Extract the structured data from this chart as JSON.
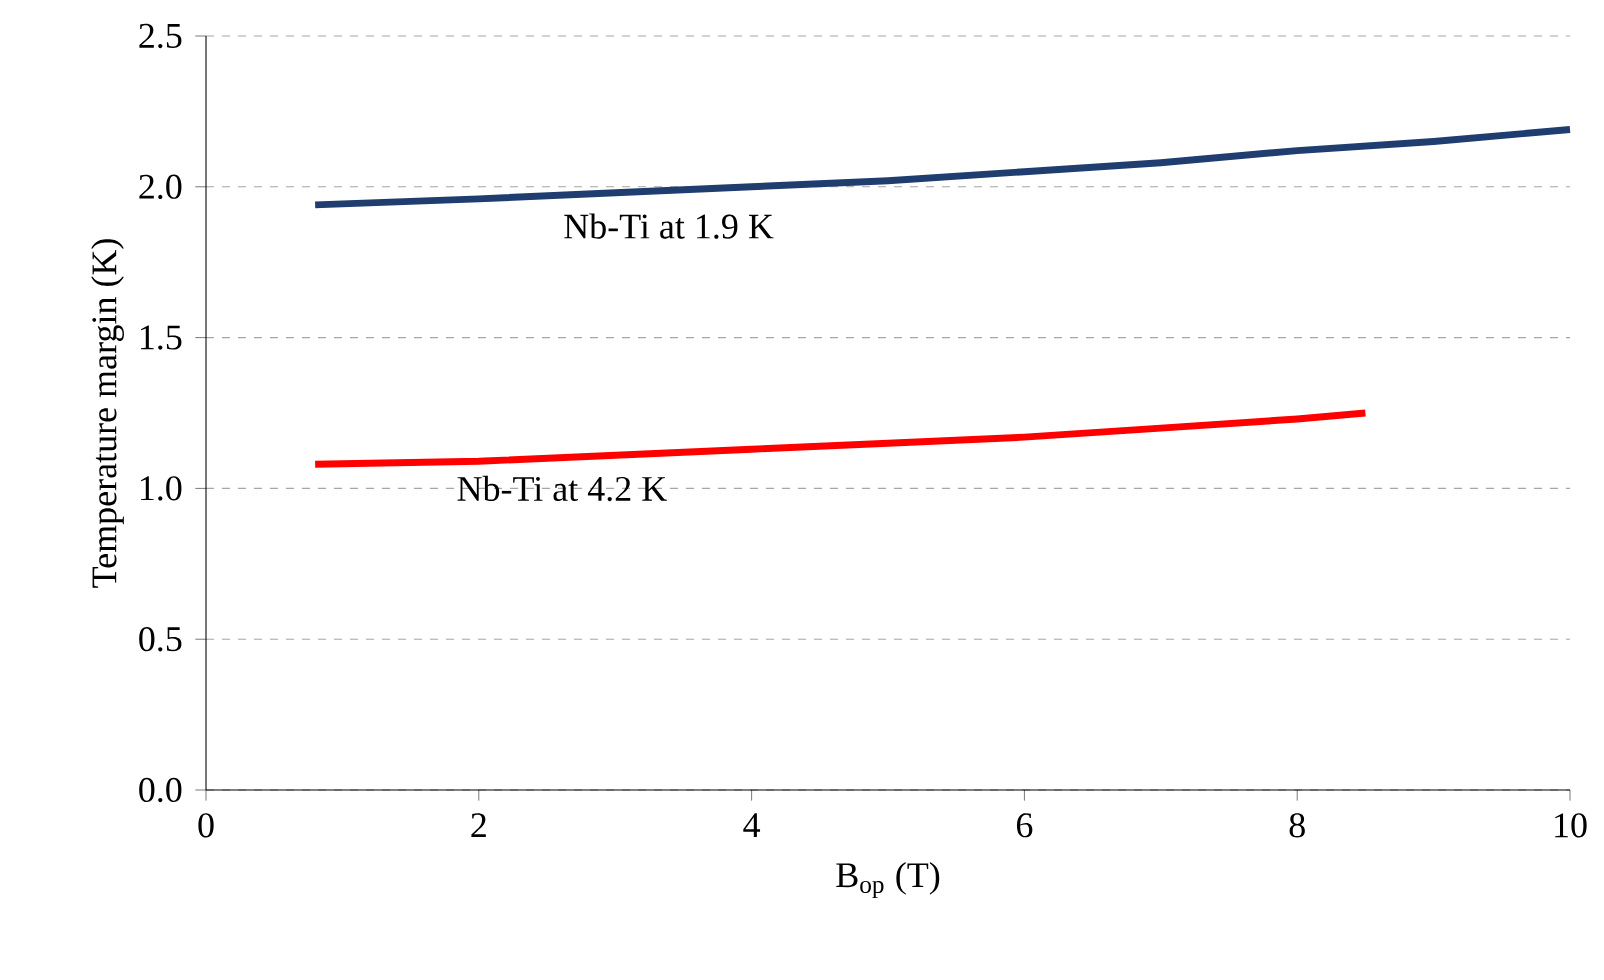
{
  "chart_data": {
    "type": "line",
    "xlabel": "B$_{op}$ (T)",
    "ylabel": "Temperature margin (K)",
    "xlim": [
      0,
      10
    ],
    "ylim": [
      0,
      2.5
    ],
    "xticks": [
      0,
      2,
      4,
      6,
      8,
      10
    ],
    "yticks": [
      {
        "value": 0,
        "label": "0.0"
      },
      {
        "value": 0.5,
        "label": "0.5"
      },
      {
        "value": 1,
        "label": "1.0"
      },
      {
        "value": 1.5,
        "label": "1.5"
      },
      {
        "value": 2,
        "label": "2.0"
      },
      {
        "value": 2.5,
        "label": "2.5"
      }
    ],
    "grid": "y",
    "legend": false,
    "marker": "none",
    "line_style": "solid",
    "series": [
      {
        "name": "Nb-Ti at 1.9 K",
        "color": "#1f3d6e",
        "x": [
          0.8,
          2,
          3,
          4,
          5,
          6,
          7,
          8,
          9,
          10
        ],
        "values": [
          1.94,
          1.96,
          1.98,
          2.0,
          2.02,
          2.05,
          2.08,
          2.12,
          2.15,
          2.19
        ]
      },
      {
        "name": "Nb-Ti at 4.2 K",
        "color": "#ff0000",
        "x": [
          0.8,
          2,
          3,
          4,
          5,
          6,
          7,
          8,
          8.5
        ],
        "values": [
          1.08,
          1.09,
          1.11,
          1.13,
          1.15,
          1.17,
          1.2,
          1.23,
          1.25
        ]
      }
    ]
  }
}
